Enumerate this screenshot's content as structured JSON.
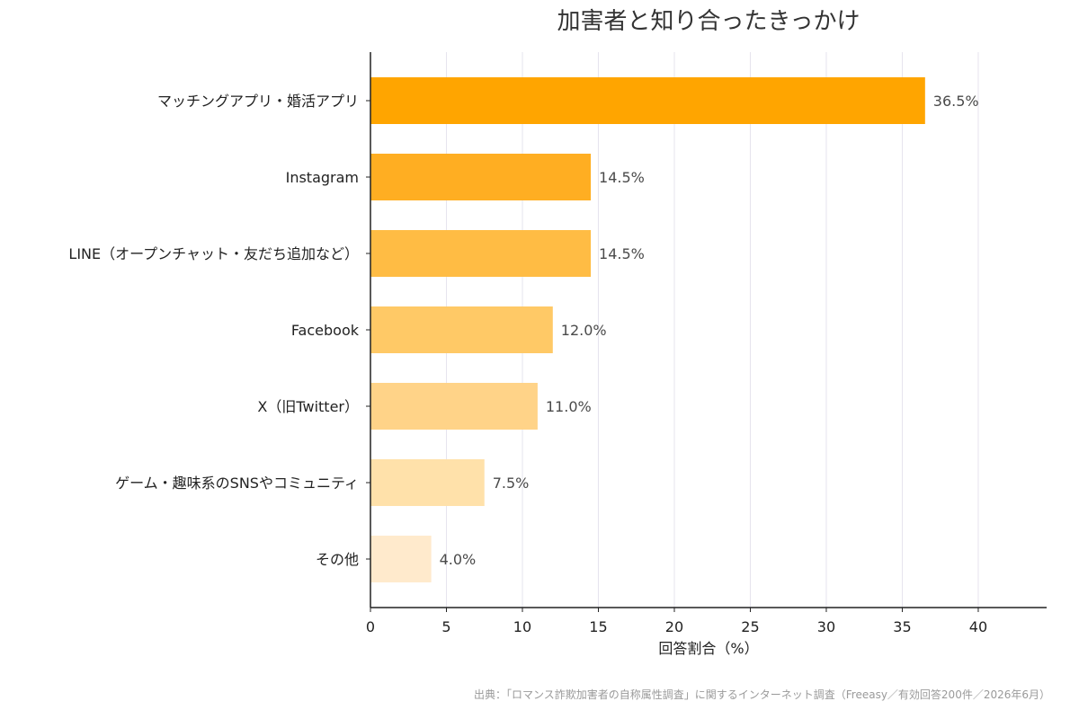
{
  "chart_data": {
    "type": "bar",
    "orientation": "horizontal",
    "title": "加害者と知り合ったきっかけ",
    "xlabel": "回答割合（%）",
    "categories": [
      "マッチングアプリ・婚活アプリ",
      "Instagram",
      "LINE（オープンチャット・友だち追加など）",
      "Facebook",
      "X（旧Twitter）",
      "ゲーム・趣味系のSNSやコミュニティ",
      "その他"
    ],
    "values": [
      36.5,
      14.5,
      14.5,
      12.0,
      11.0,
      7.5,
      4.0
    ],
    "value_labels": [
      "36.5%",
      "14.5%",
      "14.5%",
      "12.0%",
      "11.0%",
      "7.5%",
      "4.0%"
    ],
    "bar_colors": [
      "#FFA500",
      "#FFAE22",
      "#FFBC44",
      "#FFC966",
      "#FFD388",
      "#FFE1AA",
      "#FFEACC"
    ],
    "xlim": [
      0,
      44.5
    ],
    "xticks": [
      0,
      5,
      10,
      15,
      20,
      25,
      30,
      35,
      40
    ],
    "xtick_labels": [
      "0",
      "5",
      "10",
      "15",
      "20",
      "25",
      "30",
      "35",
      "40"
    ],
    "grid": "vertical",
    "source": "出典：「ロマンス詐欺加害者の自称属性調査」に関するインターネット調査（Freeasy／有効回答200件／2026年6月）"
  }
}
